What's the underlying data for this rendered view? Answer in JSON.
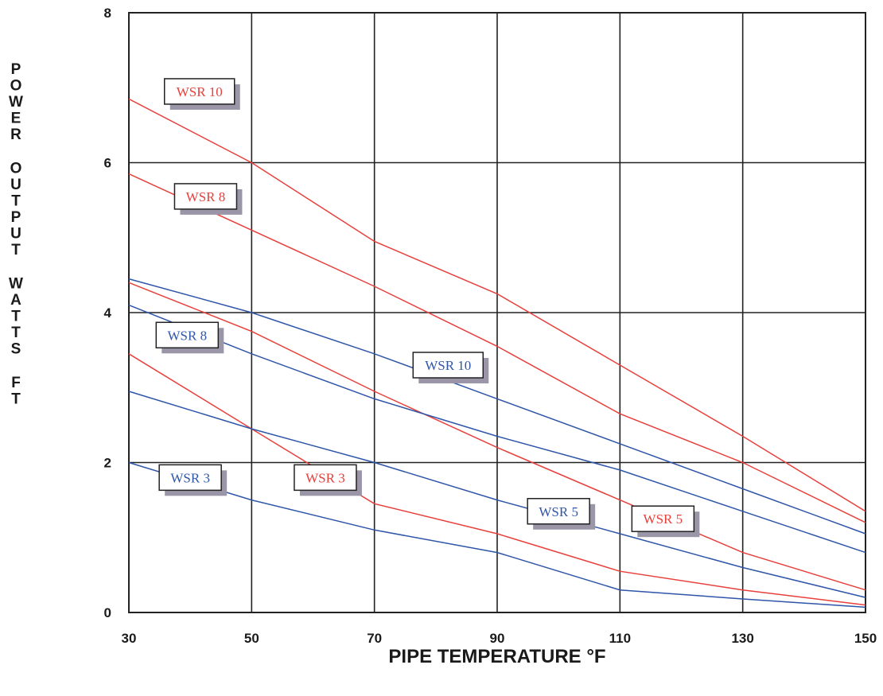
{
  "chart_data": {
    "type": "line",
    "xlabel": "PIPE TEMPERATURE  °F",
    "ylabel": "POWER OUTPUT WATTS FT",
    "ylabel_lines": [
      "POWER",
      "OUTPUT",
      "WATTS",
      "FT"
    ],
    "xlim": [
      30,
      150
    ],
    "ylim": [
      0,
      8
    ],
    "x_ticks": [
      "30",
      "50",
      "70",
      "90",
      "110",
      "130",
      "150"
    ],
    "y_ticks": [
      "0",
      "2",
      "4",
      "6",
      "8"
    ],
    "grid": true,
    "colors": {
      "red": "#e8403c",
      "blue": "#2f55a8"
    },
    "series": [
      {
        "name": "WSR 10",
        "color": "red",
        "x": [
          30,
          50,
          70,
          90,
          110,
          130,
          150
        ],
        "y": [
          6.85,
          6.0,
          4.95,
          4.25,
          3.3,
          2.35,
          1.35
        ]
      },
      {
        "name": "WSR 8",
        "color": "red",
        "x": [
          30,
          50,
          70,
          90,
          110,
          130,
          150
        ],
        "y": [
          5.85,
          5.1,
          4.35,
          3.55,
          2.65,
          2.0,
          1.2
        ]
      },
      {
        "name": "WSR 5",
        "color": "red",
        "x": [
          30,
          50,
          70,
          90,
          110,
          130,
          150
        ],
        "y": [
          4.4,
          3.75,
          2.95,
          2.2,
          1.5,
          0.8,
          0.3
        ]
      },
      {
        "name": "WSR 3",
        "color": "red",
        "x": [
          30,
          50,
          70,
          90,
          110,
          130,
          150
        ],
        "y": [
          3.45,
          2.45,
          1.45,
          1.05,
          0.55,
          0.3,
          0.1
        ]
      },
      {
        "name": "WSR 10",
        "color": "blue",
        "x": [
          30,
          50,
          70,
          90,
          110,
          130,
          150
        ],
        "y": [
          4.45,
          4.0,
          3.45,
          2.85,
          2.25,
          1.65,
          1.05
        ]
      },
      {
        "name": "WSR 8",
        "color": "blue",
        "x": [
          30,
          50,
          70,
          90,
          110,
          130,
          150
        ],
        "y": [
          4.1,
          3.45,
          2.85,
          2.35,
          1.9,
          1.35,
          0.8
        ]
      },
      {
        "name": "WSR 5",
        "color": "blue",
        "x": [
          30,
          50,
          70,
          90,
          110,
          130,
          150
        ],
        "y": [
          2.95,
          2.45,
          2.0,
          1.5,
          1.05,
          0.6,
          0.2
        ]
      },
      {
        "name": "WSR 3",
        "color": "blue",
        "x": [
          30,
          50,
          70,
          90,
          110,
          130,
          150
        ],
        "y": [
          2.0,
          1.5,
          1.1,
          0.8,
          0.3,
          0.18,
          0.07
        ]
      }
    ],
    "labels": [
      {
        "text": "WSR 10",
        "color": "red",
        "x": 41.5,
        "y": 6.95
      },
      {
        "text": "WSR 8",
        "color": "red",
        "x": 42.5,
        "y": 5.55
      },
      {
        "text": "WSR 3",
        "color": "red",
        "x": 62.0,
        "y": 1.8
      },
      {
        "text": "WSR 5",
        "color": "red",
        "x": 117.0,
        "y": 1.25
      },
      {
        "text": "WSR 8",
        "color": "blue",
        "x": 39.5,
        "y": 3.7
      },
      {
        "text": "WSR 10",
        "color": "blue",
        "x": 82.0,
        "y": 3.3
      },
      {
        "text": "WSR 3",
        "color": "blue",
        "x": 40.0,
        "y": 1.8
      },
      {
        "text": "WSR 5",
        "color": "blue",
        "x": 100.0,
        "y": 1.35
      }
    ]
  }
}
